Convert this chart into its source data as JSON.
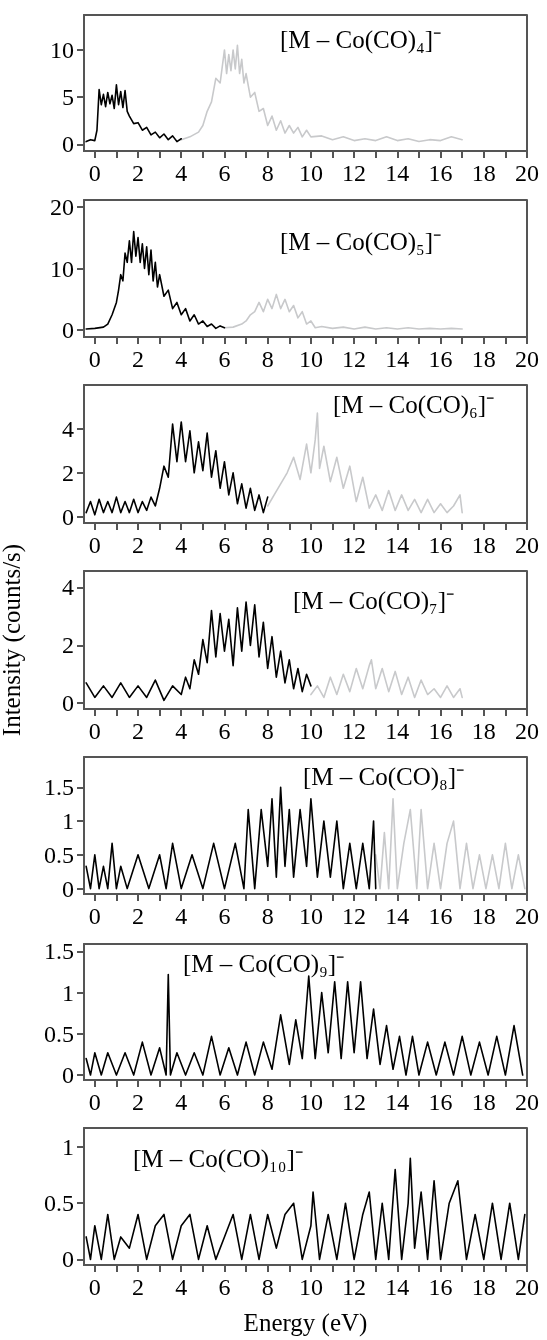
{
  "chart_data": [
    {
      "type": "line",
      "title": "[M – Co(CO)₄]⁻",
      "marker": "none",
      "xlim": [
        -0.5,
        20
      ],
      "xticks": [
        0,
        {
          "value": 1,
          "label": null
        },
        2,
        {
          "value": 3,
          "label": null
        },
        4,
        {
          "value": 5,
          "label": null
        },
        6,
        {
          "value": 7,
          "label": null
        },
        8,
        {
          "value": 9,
          "label": null
        },
        10,
        {
          "value": 11,
          "label": null
        },
        12,
        {
          "value": 13,
          "label": null
        },
        14,
        {
          "value": 15,
          "label": null
        },
        16,
        {
          "value": 17,
          "label": null
        },
        18,
        {
          "value": 19,
          "label": null
        },
        20
      ],
      "ylim": [
        -0.7,
        13.7
      ],
      "yticks": [
        0,
        5,
        10
      ],
      "series": [
        {
          "color": "#000000",
          "x": [
            -0.4,
            -0.2,
            0,
            0.1,
            0.2,
            0.3,
            0.4,
            0.5,
            0.6,
            0.7,
            0.8,
            0.9,
            1.0,
            1.1,
            1.2,
            1.3,
            1.4,
            1.5,
            1.6,
            1.7,
            1.8,
            2.0,
            2.2,
            2.4,
            2.6,
            2.8,
            3.0,
            3.2,
            3.4,
            3.6,
            3.8,
            4.0
          ],
          "values": [
            0.3,
            0.5,
            0.4,
            1.5,
            5.8,
            4.2,
            5.3,
            4.0,
            5.5,
            4.3,
            5.2,
            3.8,
            6.3,
            4.2,
            5.6,
            3.9,
            5.7,
            3.5,
            3.0,
            2.6,
            2.2,
            2.3,
            1.5,
            1.8,
            1.0,
            1.3,
            0.7,
            1.1,
            0.5,
            0.9,
            0.3,
            0.6
          ]
        },
        {
          "color": "#c8c9cb",
          "x": [
            4.0,
            4.4,
            4.8,
            5.0,
            5.2,
            5.4,
            5.6,
            5.8,
            6.0,
            6.1,
            6.2,
            6.3,
            6.4,
            6.5,
            6.6,
            6.7,
            6.8,
            6.9,
            7.0,
            7.2,
            7.4,
            7.6,
            7.8,
            8.0,
            8.2,
            8.4,
            8.6,
            8.8,
            9.0,
            9.2,
            9.4,
            9.6,
            9.8,
            10.0,
            10.5,
            11,
            11.5,
            12,
            12.5,
            13,
            13.5,
            14,
            14.5,
            15,
            15.5,
            16,
            16.5,
            17
          ],
          "values": [
            0.5,
            0.8,
            1.3,
            2.0,
            3.5,
            4.5,
            7.0,
            6.5,
            10.0,
            7.5,
            9.5,
            7.8,
            10.0,
            8.0,
            10.5,
            7.5,
            9.0,
            6.5,
            7.5,
            5.0,
            5.5,
            3.5,
            3.8,
            2.0,
            3.0,
            1.5,
            2.5,
            1.2,
            2.0,
            1.2,
            1.8,
            0.8,
            1.5,
            0.8,
            0.9,
            0.5,
            0.8,
            0.4,
            0.6,
            0.4,
            0.8,
            0.4,
            0.6,
            0.3,
            0.5,
            0.4,
            0.8,
            0.5
          ]
        }
      ]
    },
    {
      "type": "line",
      "title": "[M – Co(CO)₅]⁻",
      "marker": "none",
      "xlim": [
        -0.5,
        20
      ],
      "xticks": [
        0,
        {
          "value": 1,
          "label": null
        },
        2,
        {
          "value": 3,
          "label": null
        },
        4,
        {
          "value": 5,
          "label": null
        },
        6,
        {
          "value": 7,
          "label": null
        },
        8,
        {
          "value": 9,
          "label": null
        },
        10,
        {
          "value": 11,
          "label": null
        },
        12,
        {
          "value": 13,
          "label": null
        },
        14,
        {
          "value": 15,
          "label": null
        },
        16,
        {
          "value": 17,
          "label": null
        },
        18,
        {
          "value": 19,
          "label": null
        },
        20
      ],
      "ylim": [
        -1.1,
        21.1
      ],
      "yticks": [
        0,
        10,
        20
      ],
      "series": [
        {
          "color": "#000000",
          "x": [
            -0.4,
            0,
            0.4,
            0.6,
            0.8,
            1.0,
            1.1,
            1.2,
            1.3,
            1.4,
            1.5,
            1.6,
            1.7,
            1.8,
            1.9,
            2.0,
            2.1,
            2.2,
            2.3,
            2.4,
            2.5,
            2.6,
            2.7,
            2.8,
            2.9,
            3.0,
            3.2,
            3.4,
            3.6,
            3.8,
            4.0,
            4.2,
            4.4,
            4.6,
            4.8,
            5.0,
            5.2,
            5.4,
            5.6,
            5.8,
            6.0
          ],
          "values": [
            0.2,
            0.3,
            0.5,
            1.0,
            2.5,
            4.5,
            6.5,
            9.0,
            8.0,
            12.5,
            11.0,
            14.5,
            11.0,
            16.0,
            12.0,
            15.0,
            11.0,
            14.0,
            10.0,
            13.5,
            9.0,
            13.0,
            8.0,
            11.0,
            7.0,
            9.0,
            5.5,
            6.5,
            3.5,
            4.5,
            2.5,
            3.5,
            1.5,
            2.5,
            1.0,
            1.5,
            0.6,
            1.0,
            0.3,
            0.7,
            0.4
          ]
        },
        {
          "color": "#c8c9cb",
          "x": [
            6.0,
            6.4,
            6.8,
            7.0,
            7.2,
            7.4,
            7.6,
            7.8,
            8.0,
            8.2,
            8.4,
            8.6,
            8.8,
            9.0,
            9.2,
            9.4,
            9.6,
            9.8,
            10.0,
            10.2,
            10.5,
            11,
            11.5,
            12,
            12.5,
            13,
            13.5,
            14,
            14.5,
            15,
            15.5,
            16,
            16.5,
            17
          ],
          "values": [
            0.4,
            0.5,
            1.0,
            1.5,
            2.5,
            3.0,
            4.5,
            3.0,
            5.0,
            3.5,
            5.8,
            3.5,
            5.0,
            3.0,
            4.0,
            2.0,
            3.0,
            1.0,
            1.5,
            0.4,
            0.6,
            0.3,
            0.5,
            0.2,
            0.5,
            0.2,
            0.4,
            0.2,
            0.4,
            0.2,
            0.3,
            0.2,
            0.3,
            0.2
          ]
        }
      ]
    },
    {
      "type": "line",
      "title": "[M – Co(CO)₆]⁻",
      "marker": "none",
      "xlim": [
        -0.5,
        20
      ],
      "xticks": [
        0,
        {
          "value": 1,
          "label": null
        },
        2,
        {
          "value": 3,
          "label": null
        },
        4,
        {
          "value": 5,
          "label": null
        },
        6,
        {
          "value": 7,
          "label": null
        },
        8,
        {
          "value": 9,
          "label": null
        },
        10,
        {
          "value": 11,
          "label": null
        },
        12,
        {
          "value": 13,
          "label": null
        },
        14,
        {
          "value": 15,
          "label": null
        },
        16,
        {
          "value": 17,
          "label": null
        },
        18,
        {
          "value": 19,
          "label": null
        },
        20
      ],
      "ylim": [
        -0.27,
        5.97
      ],
      "yticks": [
        0,
        2,
        4
      ],
      "series": [
        {
          "color": "#000000",
          "x": [
            -0.4,
            -0.2,
            0,
            0.2,
            0.4,
            0.6,
            0.8,
            1.0,
            1.2,
            1.4,
            1.6,
            1.8,
            2.0,
            2.2,
            2.4,
            2.6,
            2.8,
            3.0,
            3.2,
            3.4,
            3.6,
            3.8,
            4.0,
            4.2,
            4.4,
            4.6,
            4.8,
            5.0,
            5.2,
            5.4,
            5.6,
            5.8,
            6.0,
            6.2,
            6.4,
            6.6,
            6.8,
            7.0,
            7.2,
            7.4,
            7.6,
            7.8,
            8.0
          ],
          "values": [
            0.2,
            0.7,
            0.1,
            0.8,
            0.2,
            0.7,
            0.2,
            0.9,
            0.2,
            0.7,
            0.2,
            0.8,
            0.2,
            0.7,
            0.3,
            0.9,
            0.5,
            1.3,
            2.3,
            1.8,
            4.2,
            2.5,
            4.3,
            2.5,
            3.9,
            2.0,
            3.4,
            2.1,
            3.8,
            1.8,
            3.0,
            1.3,
            2.5,
            1.0,
            2.0,
            0.6,
            1.5,
            0.4,
            1.3,
            0.3,
            1.0,
            0.2,
            0.9
          ]
        },
        {
          "color": "#c8c9cb",
          "x": [
            8.0,
            8.3,
            8.6,
            8.9,
            9.2,
            9.5,
            9.8,
            10.0,
            10.2,
            10.3,
            10.4,
            10.6,
            10.9,
            11.2,
            11.5,
            11.8,
            12.1,
            12.4,
            12.7,
            13.0,
            13.3,
            13.6,
            13.9,
            14.2,
            14.5,
            14.8,
            15.1,
            15.4,
            15.7,
            16.0,
            16.3,
            16.6,
            16.9,
            17
          ],
          "values": [
            0.5,
            1.0,
            1.5,
            2.0,
            2.7,
            1.7,
            3.3,
            2.0,
            3.5,
            4.7,
            2.2,
            3.2,
            1.6,
            2.7,
            1.3,
            2.3,
            0.7,
            1.8,
            0.4,
            1.0,
            0.3,
            1.2,
            0.3,
            1.0,
            0.3,
            0.8,
            0.2,
            0.8,
            0.2,
            0.6,
            0.2,
            0.5,
            1.0,
            0.2
          ]
        }
      ]
    },
    {
      "type": "line",
      "title": "[M – Co(CO)₇]⁻",
      "ylabel": "Intensity (counts/s)",
      "marker": "none",
      "xlim": [
        -0.5,
        20
      ],
      "xticks": [
        0,
        {
          "value": 1,
          "label": null
        },
        2,
        {
          "value": 3,
          "label": null
        },
        4,
        {
          "value": 5,
          "label": null
        },
        6,
        {
          "value": 7,
          "label": null
        },
        8,
        {
          "value": 9,
          "label": null
        },
        10,
        {
          "value": 11,
          "label": null
        },
        12,
        {
          "value": 13,
          "label": null
        },
        14,
        {
          "value": 15,
          "label": null
        },
        16,
        {
          "value": 17,
          "label": null
        },
        18,
        {
          "value": 19,
          "label": null
        },
        20
      ],
      "ylim": [
        -0.2,
        4.57
      ],
      "yticks": [
        0,
        2,
        4
      ],
      "series": [
        {
          "color": "#000000",
          "x": [
            -0.4,
            0,
            0.4,
            0.8,
            1.2,
            1.6,
            2.0,
            2.4,
            2.8,
            3.2,
            3.6,
            4.0,
            4.2,
            4.4,
            4.6,
            4.8,
            5.0,
            5.2,
            5.4,
            5.6,
            5.8,
            6.0,
            6.2,
            6.4,
            6.6,
            6.8,
            7.0,
            7.2,
            7.4,
            7.6,
            7.8,
            8.0,
            8.2,
            8.4,
            8.6,
            8.8,
            9.0,
            9.2,
            9.4,
            9.6,
            9.8,
            10.0
          ],
          "values": [
            0.7,
            0.2,
            0.6,
            0.2,
            0.7,
            0.2,
            0.6,
            0.2,
            0.8,
            0.1,
            0.6,
            0.3,
            0.9,
            0.5,
            1.5,
            1.0,
            2.2,
            1.4,
            3.2,
            1.6,
            3.1,
            1.8,
            2.9,
            1.3,
            3.3,
            1.8,
            3.5,
            2.0,
            3.4,
            1.6,
            2.8,
            1.2,
            2.3,
            0.9,
            1.8,
            0.7,
            1.5,
            0.5,
            1.2,
            0.4,
            1.0,
            0.6
          ]
        },
        {
          "color": "#c8c9cb",
          "x": [
            10.0,
            10.3,
            10.6,
            10.9,
            11.2,
            11.5,
            11.8,
            12.1,
            12.4,
            12.7,
            12.8,
            13.0,
            13.3,
            13.6,
            13.9,
            14.2,
            14.5,
            14.8,
            15.1,
            15.4,
            15.7,
            16.0,
            16.3,
            16.6,
            16.9,
            17
          ],
          "values": [
            0.3,
            0.6,
            0.2,
            0.9,
            0.3,
            1.0,
            0.4,
            1.2,
            0.5,
            1.3,
            1.5,
            0.5,
            1.2,
            0.4,
            1.1,
            0.3,
            0.9,
            0.2,
            0.8,
            0.3,
            0.5,
            0.2,
            0.6,
            0.2,
            0.5,
            0.2
          ]
        }
      ]
    },
    {
      "type": "line",
      "title": "[M – Co(CO)₈]⁻",
      "marker": "none",
      "xlim": [
        -0.5,
        20
      ],
      "xticks": [
        0,
        {
          "value": 1,
          "label": null
        },
        2,
        {
          "value": 3,
          "label": null
        },
        4,
        {
          "value": 5,
          "label": null
        },
        6,
        {
          "value": 7,
          "label": null
        },
        8,
        {
          "value": 9,
          "label": null
        },
        10,
        {
          "value": 11,
          "label": null
        },
        12,
        {
          "value": 13,
          "label": null
        },
        14,
        {
          "value": 15,
          "label": null
        },
        16,
        {
          "value": 17,
          "label": null
        },
        18,
        {
          "value": 19,
          "label": null
        },
        20
      ],
      "ylim": [
        -0.08,
        1.95
      ],
      "yticks": [
        0,
        0.5,
        1,
        1.5
      ],
      "series": [
        {
          "color": "#000000",
          "x": [
            -0.4,
            -0.2,
            0,
            0.2,
            0.4,
            0.6,
            0.8,
            1.0,
            1.2,
            1.5,
            2.0,
            2.5,
            3.0,
            3.3,
            3.6,
            4.0,
            4.5,
            5.0,
            5.5,
            6.0,
            6.5,
            6.9,
            7.1,
            7.4,
            7.7,
            8.0,
            8.2,
            8.4,
            8.6,
            8.8,
            9.0,
            9.2,
            9.5,
            9.8,
            10.0,
            10.3,
            10.6,
            10.9,
            11.2,
            11.5,
            11.8,
            12.1,
            12.4,
            12.7,
            12.9,
            13.0
          ],
          "values": [
            0.33,
            0,
            0.5,
            0,
            0.33,
            0,
            0.67,
            0,
            0.33,
            0,
            0.5,
            0,
            0.5,
            0,
            0.67,
            0,
            0.5,
            0,
            0.67,
            0,
            0.67,
            0,
            1.17,
            0,
            1.17,
            0.33,
            1.33,
            0.17,
            1.5,
            0.33,
            1.17,
            0.17,
            1.17,
            0.33,
            1.33,
            0.17,
            1.0,
            0.17,
            1.0,
            0,
            0.67,
            0,
            0.67,
            0,
            1.0,
            0
          ]
        },
        {
          "color": "#c8c9cb",
          "x": [
            13.0,
            13.2,
            13.4,
            13.6,
            13.8,
            14.0,
            14.3,
            14.6,
            14.9,
            15.1,
            15.4,
            15.7,
            16.0,
            16.3,
            16.6,
            16.9,
            17.2,
            17.5,
            17.8,
            18.1,
            18.4,
            18.7,
            19.0,
            19.3,
            19.6,
            19.9
          ],
          "values": [
            0.5,
            0,
            0.83,
            0,
            1.33,
            0,
            0.67,
            1.17,
            0,
            1.17,
            0,
            0.67,
            0,
            0.67,
            1.0,
            0,
            0.67,
            0,
            0.5,
            0,
            0.5,
            0,
            0.67,
            0,
            0.5,
            0
          ]
        }
      ]
    },
    {
      "type": "line",
      "title": "[M – Co(CO)₉]⁻",
      "marker": "none",
      "xlim": [
        -0.5,
        20
      ],
      "xticks": [
        0,
        {
          "value": 1,
          "label": null
        },
        2,
        {
          "value": 3,
          "label": null
        },
        4,
        {
          "value": 5,
          "label": null
        },
        6,
        {
          "value": 7,
          "label": null
        },
        8,
        {
          "value": 9,
          "label": null
        },
        10,
        {
          "value": 11,
          "label": null
        },
        12,
        {
          "value": 13,
          "label": null
        },
        14,
        {
          "value": 15,
          "label": null
        },
        16,
        {
          "value": 17,
          "label": null
        },
        18,
        {
          "value": 19,
          "label": null
        },
        20
      ],
      "ylim": [
        -0.06,
        1.59
      ],
      "yticks": [
        0,
        0.5,
        1,
        1.5
      ],
      "series": [
        {
          "color": "#000000",
          "x": [
            -0.4,
            -0.2,
            0,
            0.3,
            0.6,
            1.0,
            1.4,
            1.8,
            2.2,
            2.6,
            3.0,
            3.3,
            3.4,
            3.5,
            3.8,
            4.2,
            4.6,
            5.0,
            5.4,
            5.8,
            6.2,
            6.6,
            7.0,
            7.4,
            7.8,
            8.2,
            8.6,
            9.0,
            9.3,
            9.6,
            9.9,
            10.2,
            10.5,
            10.8,
            11.1,
            11.4,
            11.7,
            12.0,
            12.3,
            12.6,
            12.9,
            13.2,
            13.5,
            13.8,
            14.1,
            14.4,
            14.7,
            15.0,
            15.4,
            15.8,
            16.2,
            16.6,
            17.0,
            17.4,
            17.8,
            18.2,
            18.6,
            19.0,
            19.4,
            19.8
          ],
          "values": [
            0.2,
            0,
            0.27,
            0,
            0.27,
            0,
            0.27,
            0,
            0.4,
            0,
            0.33,
            0,
            1.22,
            0,
            0.27,
            0,
            0.27,
            0,
            0.47,
            0,
            0.33,
            0,
            0.4,
            0,
            0.4,
            0.07,
            0.73,
            0.13,
            0.67,
            0.2,
            1.2,
            0.2,
            1.0,
            0.27,
            1.13,
            0.2,
            1.13,
            0.27,
            1.13,
            0.2,
            0.8,
            0.13,
            0.6,
            0.07,
            0.47,
            0,
            0.47,
            0,
            0.4,
            0,
            0.4,
            0,
            0.47,
            0,
            0.4,
            0,
            0.47,
            0,
            0.6,
            0
          ]
        }
      ]
    },
    {
      "type": "line",
      "title": "[M – Co(CO)₁₀]⁻",
      "xlabel": "Energy (eV)",
      "marker": "none",
      "xlim": [
        -0.5,
        20
      ],
      "xticks": [
        0,
        {
          "value": 1,
          "label": null
        },
        2,
        {
          "value": 3,
          "label": null
        },
        4,
        {
          "value": 5,
          "label": null
        },
        6,
        {
          "value": 7,
          "label": null
        },
        8,
        {
          "value": 9,
          "label": null
        },
        10,
        {
          "value": 11,
          "label": null
        },
        12,
        {
          "value": 13,
          "label": null
        },
        14,
        {
          "value": 15,
          "label": null
        },
        16,
        {
          "value": 17,
          "label": null
        },
        18,
        {
          "value": 19,
          "label": null
        },
        20
      ],
      "ylim": [
        -0.05,
        1.17
      ],
      "yticks": [
        0,
        0.5,
        1
      ],
      "series": [
        {
          "color": "#000000",
          "x": [
            -0.4,
            -0.2,
            0,
            0.3,
            0.6,
            0.9,
            1.2,
            1.6,
            2.0,
            2.4,
            2.8,
            3.2,
            3.6,
            4.0,
            4.4,
            4.8,
            5.2,
            5.6,
            6.0,
            6.4,
            6.8,
            7.2,
            7.6,
            8.0,
            8.4,
            8.8,
            9.2,
            9.6,
            10.0,
            10.1,
            10.4,
            10.8,
            11.2,
            11.6,
            12.0,
            12.4,
            12.7,
            13.0,
            13.3,
            13.6,
            13.9,
            14.2,
            14.5,
            14.6,
            14.8,
            15.1,
            15.4,
            15.7,
            16.0,
            16.4,
            16.8,
            17.2,
            17.6,
            18.0,
            18.4,
            18.8,
            19.2,
            19.6,
            19.9
          ],
          "values": [
            0.2,
            0,
            0.3,
            0,
            0.4,
            0,
            0.2,
            0.1,
            0.4,
            0,
            0.3,
            0.4,
            0,
            0.3,
            0.4,
            0,
            0.3,
            0,
            0.2,
            0.4,
            0,
            0.4,
            0,
            0.4,
            0.1,
            0.4,
            0.5,
            0,
            0.3,
            0.6,
            0,
            0.4,
            0,
            0.5,
            0,
            0.4,
            0.6,
            0,
            0.5,
            0,
            0.8,
            0,
            0.5,
            0.9,
            0.1,
            0.6,
            0,
            0.7,
            0,
            0.5,
            0.7,
            0,
            0.4,
            0,
            0.5,
            0,
            0.5,
            0,
            0.4
          ]
        }
      ]
    }
  ]
}
